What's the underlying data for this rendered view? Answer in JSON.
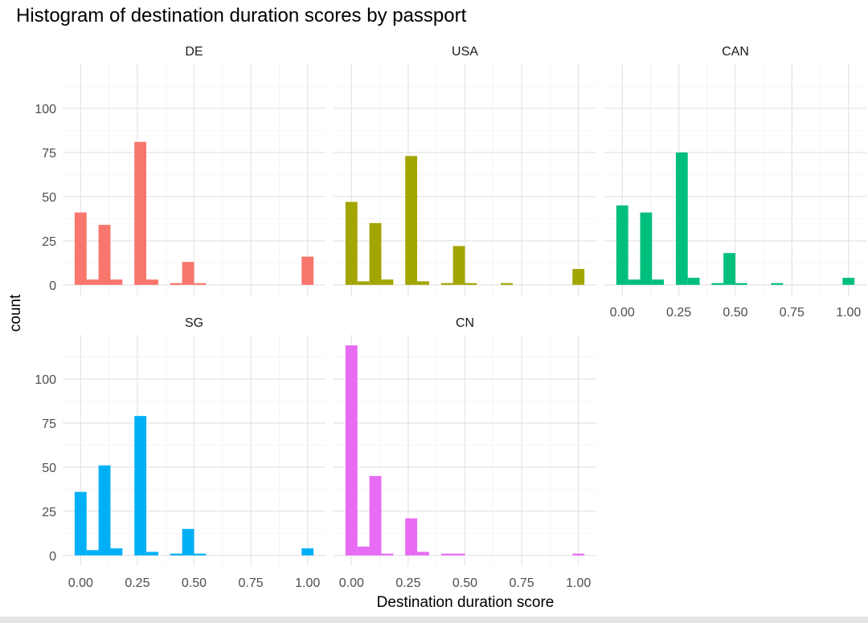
{
  "chart_data": {
    "type": "bar",
    "title": "Histogram of destination duration scores by passport",
    "xlabel": "Destination duration score",
    "ylabel": "count",
    "bin_centers_note": "20 bins, centers k/19 for k=0..19",
    "bin_centers": [
      0,
      0.0526,
      0.1053,
      0.1579,
      0.2105,
      0.2632,
      0.3158,
      0.3684,
      0.4211,
      0.4737,
      0.5263,
      0.5789,
      0.6316,
      0.6842,
      0.7368,
      0.7895,
      0.8421,
      0.8947,
      0.9474,
      1.0
    ],
    "bin_width": 0.0526,
    "xlim": [
      -0.079,
      1.079
    ],
    "ylim": [
      -6,
      125
    ],
    "x_ticks": [
      "0.00",
      "0.25",
      "0.50",
      "0.75",
      "1.00"
    ],
    "x_tick_values": [
      0,
      0.25,
      0.5,
      0.75,
      1
    ],
    "y_ticks": [
      "0",
      "25",
      "50",
      "75",
      "100"
    ],
    "y_tick_values": [
      0,
      25,
      50,
      75,
      100
    ],
    "grid": true,
    "facets": [
      {
        "name": "DE",
        "color": "#F8766D",
        "values": [
          41,
          3,
          34,
          3,
          0,
          81,
          3,
          0,
          1,
          13,
          1,
          0,
          0,
          0,
          0,
          0,
          0,
          0,
          0,
          16
        ]
      },
      {
        "name": "USA",
        "color": "#A3A500",
        "values": [
          47,
          2,
          35,
          3,
          0,
          73,
          2,
          0,
          1,
          22,
          1,
          0,
          0,
          1,
          0,
          0,
          0,
          0,
          0,
          9
        ]
      },
      {
        "name": "CAN",
        "color": "#00BF7D",
        "values": [
          45,
          3,
          41,
          3,
          0,
          75,
          4,
          0,
          1,
          18,
          1,
          0,
          0,
          1,
          0,
          0,
          0,
          0,
          0,
          4
        ]
      },
      {
        "name": "SG",
        "color": "#00B0F6",
        "values": [
          36,
          3,
          51,
          4,
          0,
          79,
          2,
          0,
          1,
          15,
          1,
          0,
          0,
          0,
          0,
          0,
          0,
          0,
          0,
          4
        ]
      },
      {
        "name": "CN",
        "color": "#E76BF3",
        "values": [
          119,
          5,
          45,
          1,
          0,
          21,
          2,
          0,
          1,
          1,
          0,
          0,
          0,
          0,
          0,
          0,
          0,
          0,
          0,
          1
        ]
      }
    ]
  }
}
